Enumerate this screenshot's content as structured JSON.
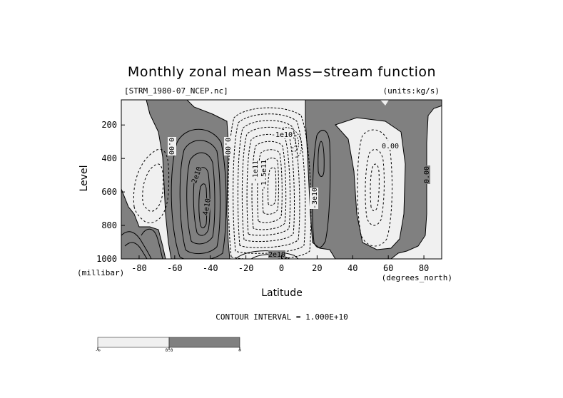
{
  "chart_data": {
    "type": "contour",
    "title": "Monthly zonal mean Mass−stream function",
    "source_file": "[STRM_1980-07_NCEP.nc]",
    "units": "(units:kg/s)",
    "xlabel": "Latitude",
    "xunits": "(degrees_north)",
    "ylabel": "Level",
    "yunits": "(millibar)",
    "xlim": [
      -90,
      90
    ],
    "ylim": [
      1000,
      50
    ],
    "y_reversed": true,
    "x_ticks": [
      "-80",
      "-60",
      "-40",
      "-20",
      "0",
      "20",
      "40",
      "60",
      "80"
    ],
    "y_ticks": [
      "200",
      "400",
      "600",
      "800",
      "1000"
    ],
    "contour_interval_text": "CONTOUR INTERVAL = 1.000E+10",
    "contour_labels": [
      "0.00",
      "0.00",
      "0.00",
      "0.00",
      "2e10",
      "4e10",
      "-1e11",
      "-1.5e11",
      "-1e10",
      "-3e10",
      "2e10"
    ],
    "shading": {
      "negative_color": "#f0f0f0",
      "positive_color": "#808080"
    },
    "colorbar": {
      "labels": [
        "-∞",
        "0.0",
        "∞"
      ],
      "colors": [
        "#f0f0f0",
        "#808080"
      ]
    },
    "cells": [
      {
        "name": "southern-ferrel-cell",
        "sign": "positive",
        "x_range": [
          -55,
          -32
        ],
        "y_range": [
          980,
          210
        ],
        "peak": 50000000000.0
      },
      {
        "name": "hadley-cell",
        "sign": "negative",
        "x_range": [
          -30,
          18
        ],
        "y_range": [
          990,
          90
        ],
        "peak": -200000000000.0
      },
      {
        "name": "northern-positive-cell",
        "sign": "positive",
        "x_range": [
          17,
          31
        ],
        "y_range": [
          980,
          140
        ],
        "peak": 20000000000.0
      },
      {
        "name": "northern-negative-cell",
        "sign": "negative",
        "x_range": [
          38,
          62
        ],
        "y_range": [
          940,
          150
        ],
        "peak": -30000000000.0
      }
    ]
  }
}
